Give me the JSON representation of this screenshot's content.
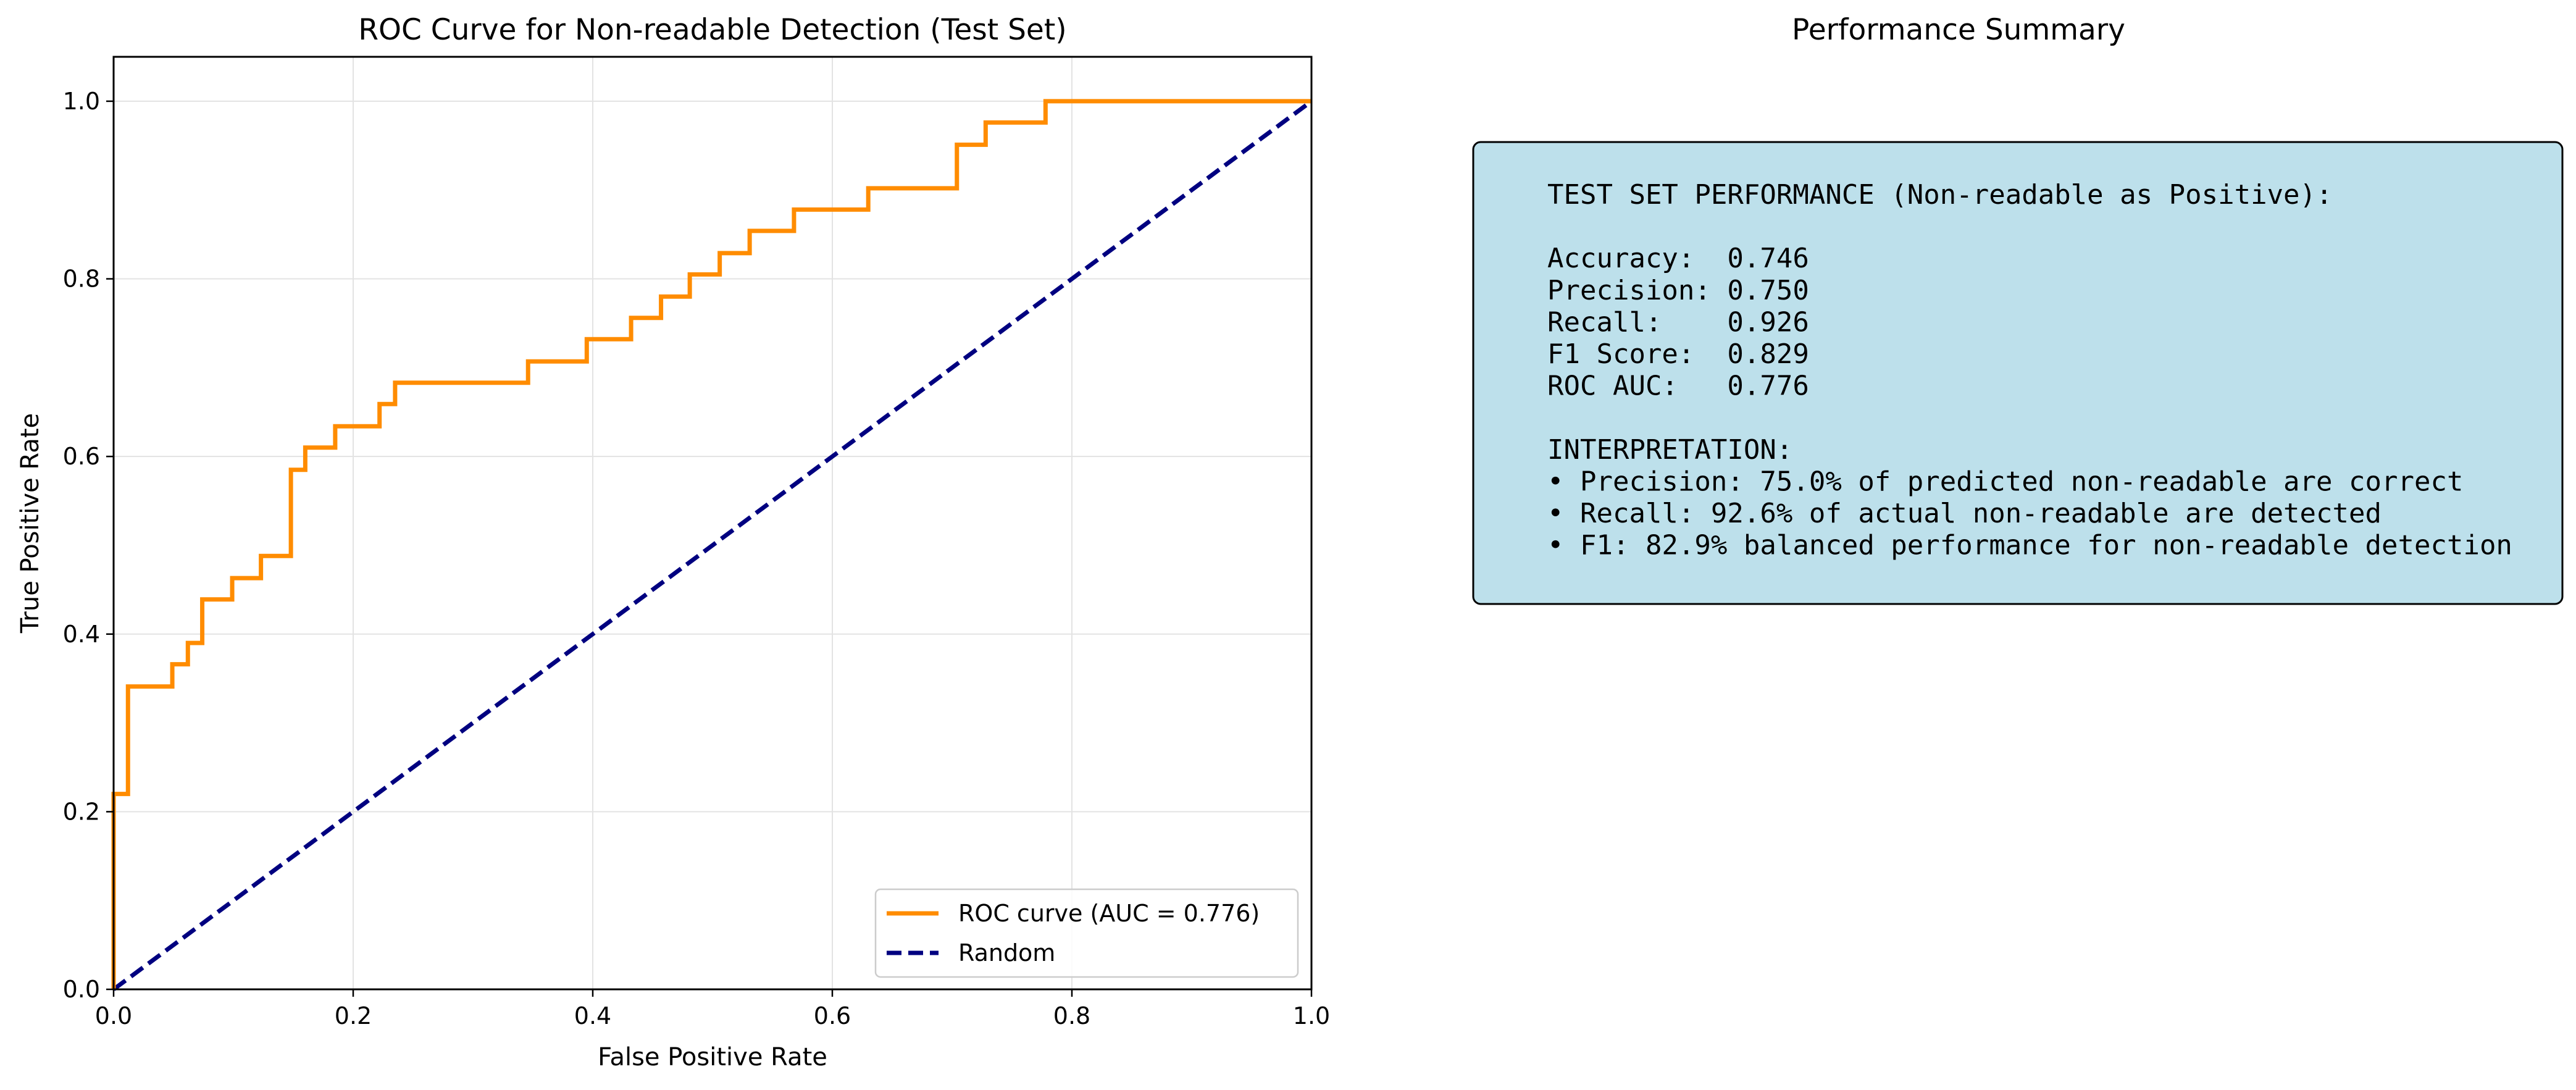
{
  "chart_data": {
    "type": "line",
    "title": "ROC Curve for Non-readable Detection (Test Set)",
    "xlabel": "False Positive Rate",
    "ylabel": "True Positive Rate",
    "xlim": [
      0.0,
      1.0
    ],
    "ylim": [
      0.0,
      1.05
    ],
    "x_ticks": [
      "0.0",
      "0.2",
      "0.4",
      "0.6",
      "0.8",
      "1.0"
    ],
    "y_ticks": [
      "0.0",
      "0.2",
      "0.4",
      "0.6",
      "0.8",
      "1.0"
    ],
    "grid": true,
    "legend_position": "lower-right",
    "series": [
      {
        "name": "ROC curve (AUC = 0.776)",
        "color": "#ff8c00",
        "style": "solid",
        "x": [
          0.0,
          0.0,
          0.012,
          0.012,
          0.049,
          0.049,
          0.062,
          0.062,
          0.074,
          0.074,
          0.099,
          0.099,
          0.123,
          0.123,
          0.148,
          0.148,
          0.16,
          0.16,
          0.185,
          0.185,
          0.222,
          0.222,
          0.235,
          0.235,
          0.346,
          0.346,
          0.395,
          0.395,
          0.432,
          0.432,
          0.457,
          0.457,
          0.481,
          0.481,
          0.506,
          0.506,
          0.531,
          0.531,
          0.568,
          0.568,
          0.63,
          0.63,
          0.704,
          0.704,
          0.728,
          0.728,
          0.778,
          0.778,
          1.0
        ],
        "y": [
          0.0,
          0.22,
          0.22,
          0.341,
          0.341,
          0.366,
          0.366,
          0.39,
          0.39,
          0.439,
          0.439,
          0.463,
          0.463,
          0.488,
          0.488,
          0.585,
          0.585,
          0.61,
          0.61,
          0.634,
          0.634,
          0.659,
          0.659,
          0.683,
          0.683,
          0.707,
          0.707,
          0.732,
          0.732,
          0.756,
          0.756,
          0.78,
          0.78,
          0.805,
          0.805,
          0.829,
          0.829,
          0.854,
          0.854,
          0.878,
          0.878,
          0.902,
          0.902,
          0.951,
          0.951,
          0.976,
          0.976,
          1.0,
          1.0
        ]
      },
      {
        "name": "Random",
        "color": "#000080",
        "style": "dashed",
        "x": [
          0.0,
          1.0
        ],
        "y": [
          0.0,
          1.0
        ]
      }
    ]
  },
  "summary": {
    "title": "Performance Summary",
    "box_color": "#add8e6",
    "lines": [
      "TEST SET PERFORMANCE (Non-readable as Positive):",
      "",
      "Accuracy:  0.746",
      "Precision: 0.750",
      "Recall:    0.926",
      "F1 Score:  0.829",
      "ROC AUC:   0.776",
      "",
      "INTERPRETATION:",
      "• Precision: 75.0% of predicted non-readable are correct",
      "• Recall: 92.6% of actual non-readable are detected",
      "• F1: 82.9% balanced performance for non-readable detection"
    ]
  }
}
